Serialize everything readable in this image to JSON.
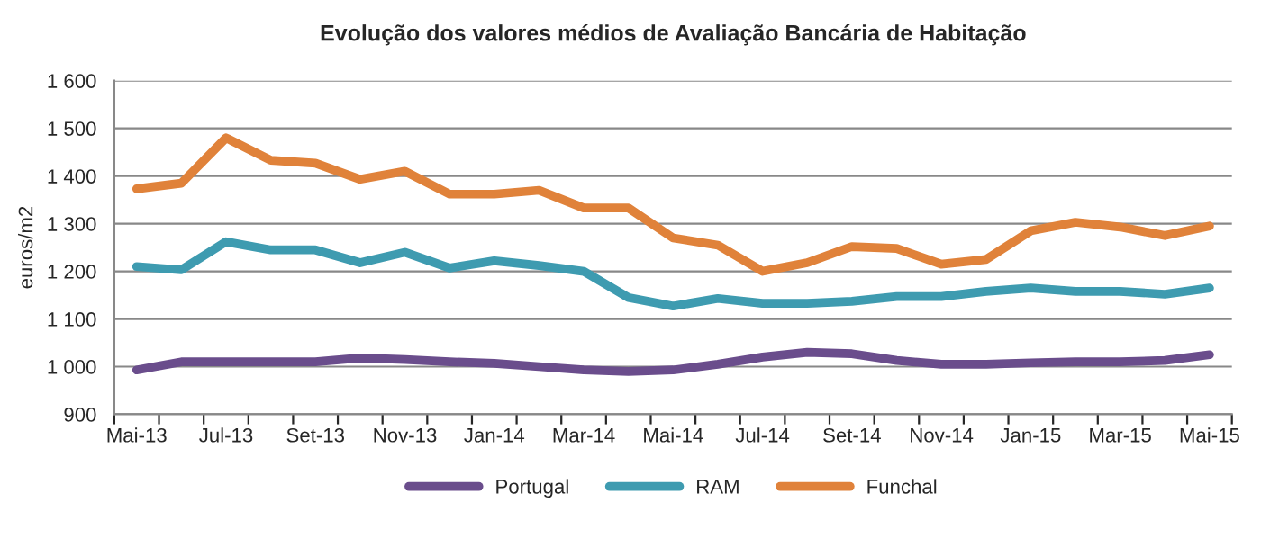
{
  "chart_data": {
    "type": "line",
    "title": "Evolução dos valores médios de Avaliação Bancária de Habitação",
    "ylabel": "euros/m2",
    "categories": [
      "Mai-13",
      null,
      "Jul-13",
      null,
      "Set-13",
      null,
      "Nov-13",
      null,
      "Jan-14",
      null,
      "Mar-14",
      null,
      "Mai-14",
      null,
      "Jul-14",
      null,
      "Set-14",
      null,
      "Nov-14",
      null,
      "Jan-15",
      null,
      "Mar-15",
      null,
      "Mai-15"
    ],
    "series": [
      {
        "name": "Portugal",
        "color": "#6a4d8c",
        "values": [
          993,
          1010,
          1010,
          1010,
          1010,
          1018,
          1015,
          1010,
          1007,
          1000,
          993,
          990,
          993,
          1005,
          1020,
          1030,
          1027,
          1013,
          1005,
          1005,
          1008,
          1010,
          1010,
          1013,
          1025
        ]
      },
      {
        "name": "RAM",
        "color": "#3e9bb0",
        "values": [
          1210,
          1203,
          1262,
          1245,
          1245,
          1218,
          1240,
          1207,
          1222,
          1212,
          1200,
          1145,
          1127,
          1143,
          1133,
          1133,
          1137,
          1147,
          1147,
          1158,
          1165,
          1158,
          1158,
          1152,
          1165
        ]
      },
      {
        "name": "Funchal",
        "color": "#e0823a",
        "values": [
          1373,
          1385,
          1480,
          1433,
          1427,
          1393,
          1410,
          1362,
          1362,
          1370,
          1333,
          1333,
          1270,
          1255,
          1200,
          1218,
          1252,
          1248,
          1215,
          1225,
          1285,
          1303,
          1293,
          1275,
          1295
        ]
      }
    ],
    "ylim": [
      900,
      1600
    ],
    "yticks": [
      900,
      {
        "value": 1000,
        "label": "1 000"
      },
      {
        "value": 1100,
        "label": "1 100"
      },
      {
        "value": 1200,
        "label": "1 200"
      },
      {
        "value": 1300,
        "label": "1 300"
      },
      {
        "value": 1400,
        "label": "1 400"
      },
      {
        "value": 1500,
        "label": "1 500"
      },
      {
        "value": 1600,
        "label": "1 600"
      }
    ],
    "grid": "y",
    "legend": "bottom",
    "marker": "none",
    "line_style": "solid"
  }
}
